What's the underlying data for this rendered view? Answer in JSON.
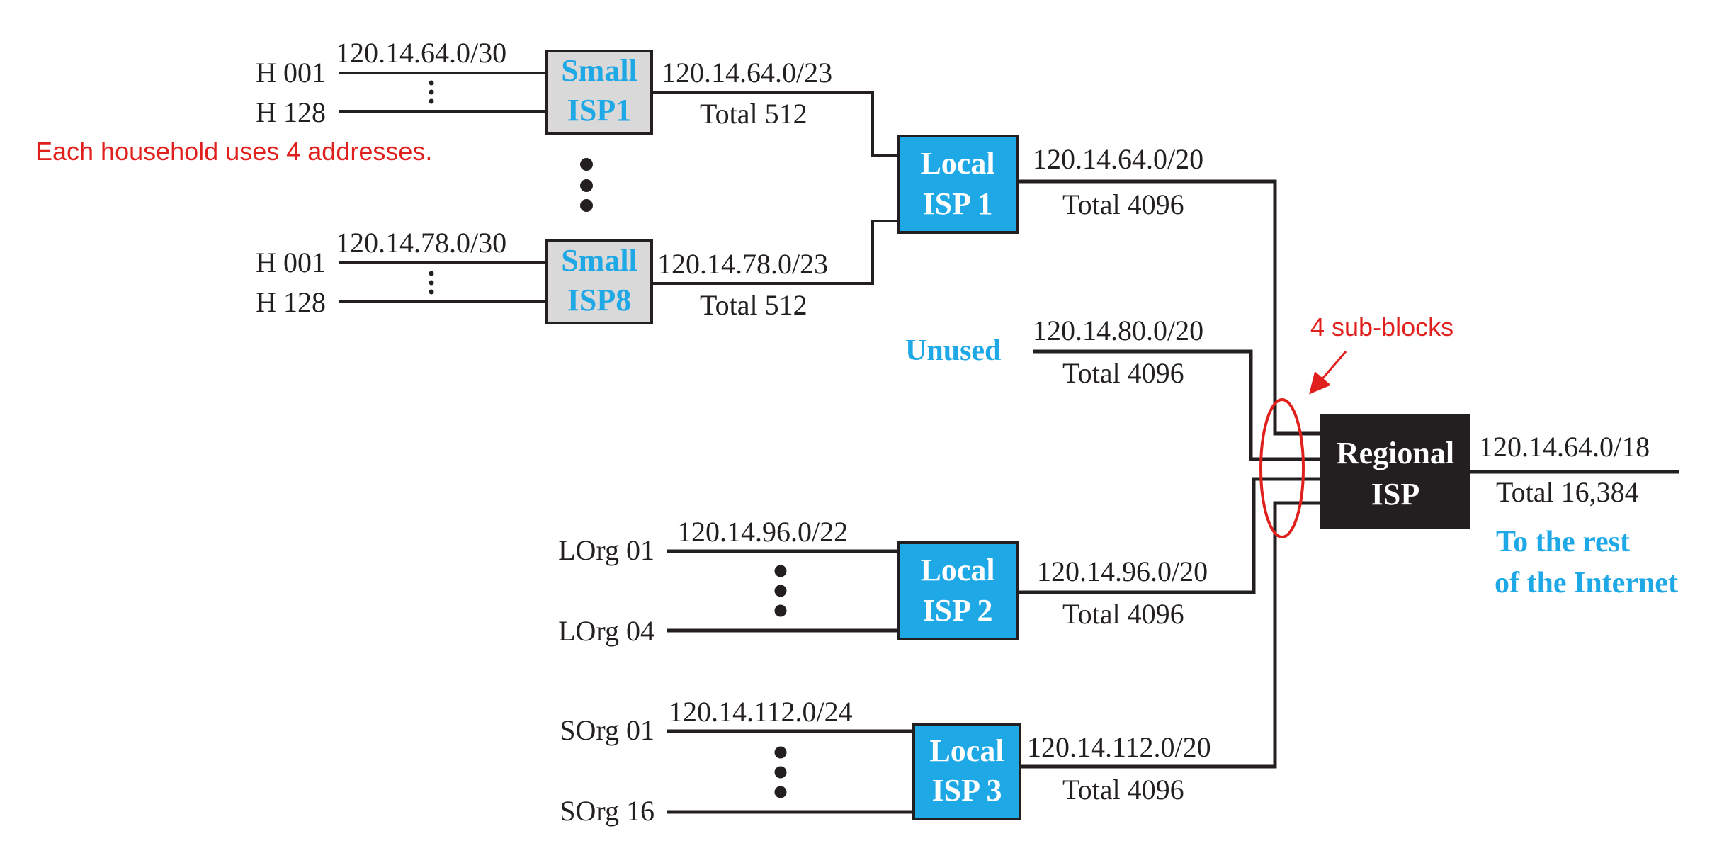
{
  "colors": {
    "line": "#231f20",
    "small_isp_fill": "#d9d9d9",
    "local_isp_fill": "#1fa8e6",
    "regional_isp_fill": "#231f20",
    "blue_text": "#1fa8e6",
    "annotation_red": "#e0201c"
  },
  "small_isps": [
    {
      "name_line1": "Small",
      "name_line2": "ISP1",
      "first_host": "H 001",
      "last_host": "H 128",
      "host_block": "120.14.64.0/30",
      "block": "120.14.64.0/23",
      "total": "Total 512"
    },
    {
      "name_line1": "Small",
      "name_line2": "ISP8",
      "first_host": "H 001",
      "last_host": "H 128",
      "host_block": "120.14.78.0/30",
      "block": "120.14.78.0/23",
      "total": "Total 512"
    }
  ],
  "household_note": "Each household uses 4 addresses.",
  "local_isps": [
    {
      "name_line1": "Local",
      "name_line2": "ISP 1",
      "block": "120.14.64.0/20",
      "total": "Total 4096"
    },
    {
      "name_line1": "Local",
      "name_line2": "ISP 2",
      "first_org": "LOrg 01",
      "last_org": "LOrg 04",
      "org_block": "120.14.96.0/22",
      "block": "120.14.96.0/20",
      "total": "Total 4096"
    },
    {
      "name_line1": "Local",
      "name_line2": "ISP 3",
      "first_org": "SOrg 01",
      "last_org": "SOrg 16",
      "org_block": "120.14.112.0/24",
      "block": "120.14.112.0/20",
      "total": "Total 4096"
    }
  ],
  "unused": {
    "label": "Unused",
    "block": "120.14.80.0/20",
    "total": "Total 4096"
  },
  "sub_blocks_note": "4 sub-blocks",
  "regional_isp": {
    "name_line1": "Regional",
    "name_line2": "ISP",
    "block": "120.14.64.0/18",
    "total": "Total 16,384",
    "internet_line1": "To the rest",
    "internet_line2": "of the Internet"
  }
}
